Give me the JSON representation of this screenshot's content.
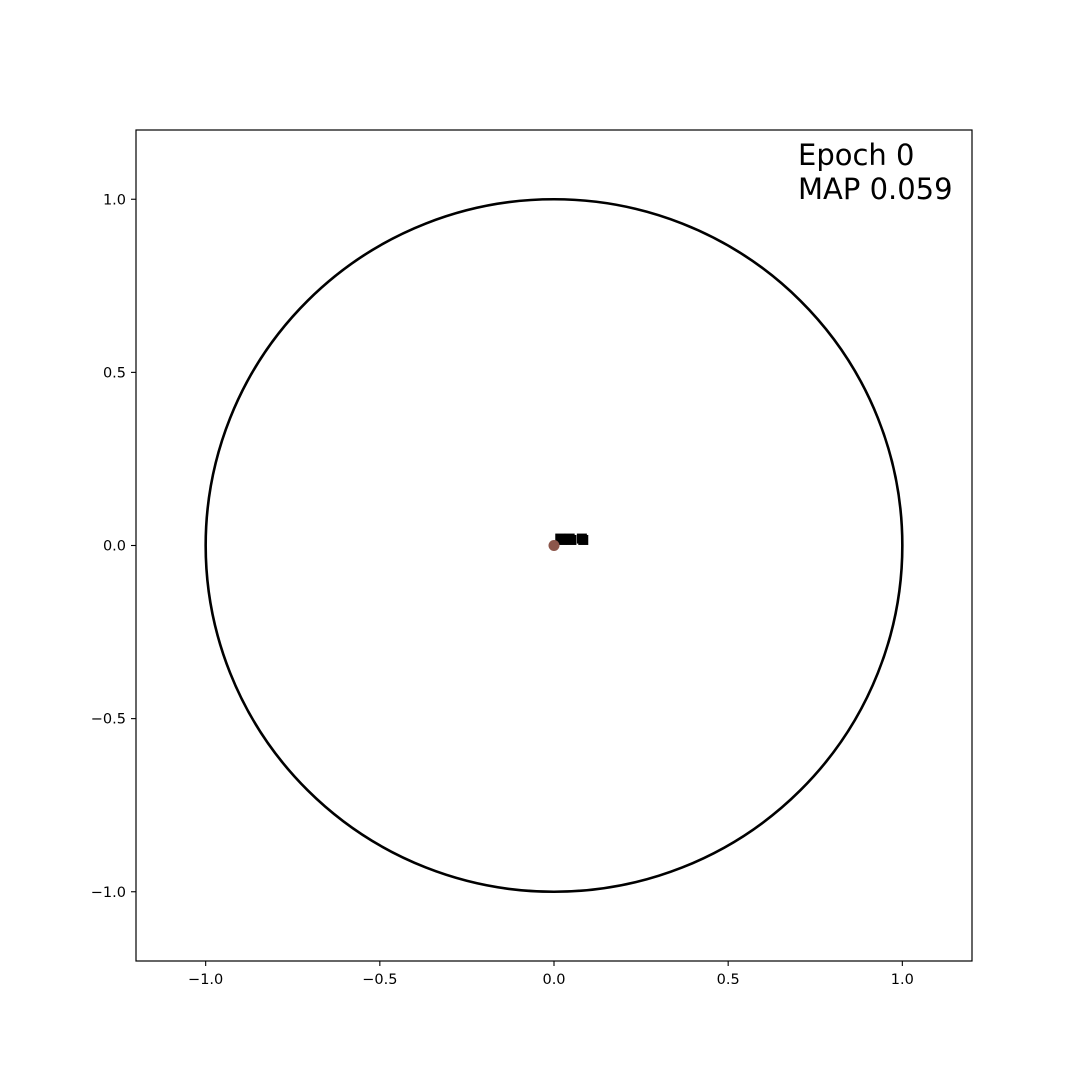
{
  "chart_data": {
    "type": "scatter",
    "title": "",
    "xlabel": "",
    "ylabel": "",
    "xlim": [
      -1.2,
      1.2
    ],
    "ylim": [
      -1.2,
      1.2
    ],
    "grid": false,
    "xticks": [
      {
        "value": -1.0,
        "label": "−1.0"
      },
      {
        "value": -0.5,
        "label": "−0.5"
      },
      {
        "value": 0.0,
        "label": "0.0"
      },
      {
        "value": 0.5,
        "label": "0.5"
      },
      {
        "value": 1.0,
        "label": "1.0"
      }
    ],
    "yticks": [
      {
        "value": -1.0,
        "label": "−1.0"
      },
      {
        "value": -0.5,
        "label": "−0.5"
      },
      {
        "value": 0.0,
        "label": "0.0"
      },
      {
        "value": 0.5,
        "label": "0.5"
      },
      {
        "value": 1.0,
        "label": "1.0"
      }
    ],
    "annotations": [
      {
        "text": "Epoch 0",
        "placement": "top-right"
      },
      {
        "text": "MAP 0.059",
        "placement": "top-right"
      }
    ],
    "unit_circle": {
      "cx": 0.0,
      "cy": 0.0,
      "r": 1.0,
      "color": "#000000"
    },
    "series": [
      {
        "marker": "square",
        "color": "#000000",
        "points": [
          {
            "x": 0.018,
            "y": 0.02
          },
          {
            "x": 0.022,
            "y": 0.016
          },
          {
            "x": 0.045,
            "y": 0.02
          },
          {
            "x": 0.05,
            "y": 0.016
          },
          {
            "x": 0.08,
            "y": 0.02
          },
          {
            "x": 0.084,
            "y": 0.016
          }
        ]
      },
      {
        "marker": "circle",
        "color": "#8c564b",
        "points": [
          {
            "x": 0.0,
            "y": 0.0
          }
        ]
      }
    ]
  }
}
